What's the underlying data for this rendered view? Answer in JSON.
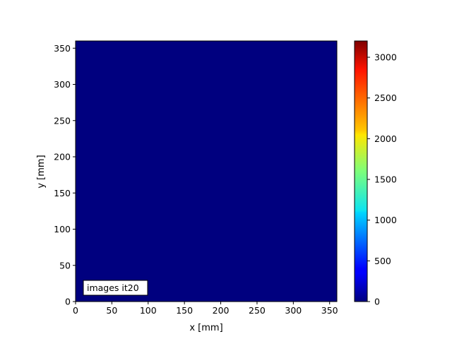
{
  "chart_data": {
    "type": "heatmap",
    "title": "",
    "xlabel": "x [mm]",
    "ylabel": "y [mm]",
    "xlim": [
      0,
      360
    ],
    "ylim": [
      0,
      360
    ],
    "xticks": [
      "0",
      "50",
      "100",
      "150",
      "200",
      "250",
      "300",
      "350"
    ],
    "yticks": [
      "0",
      "50",
      "100",
      "150",
      "200",
      "250",
      "300",
      "350"
    ],
    "z_uniform_value": 0,
    "colormap": "jet",
    "colorbar": {
      "range": [
        0,
        3200
      ],
      "ticks": [
        "0",
        "500",
        "1000",
        "1500",
        "2000",
        "2500",
        "3000"
      ]
    },
    "annotation": "images it20",
    "grid": false,
    "colors": {
      "field": "#00007f"
    }
  }
}
